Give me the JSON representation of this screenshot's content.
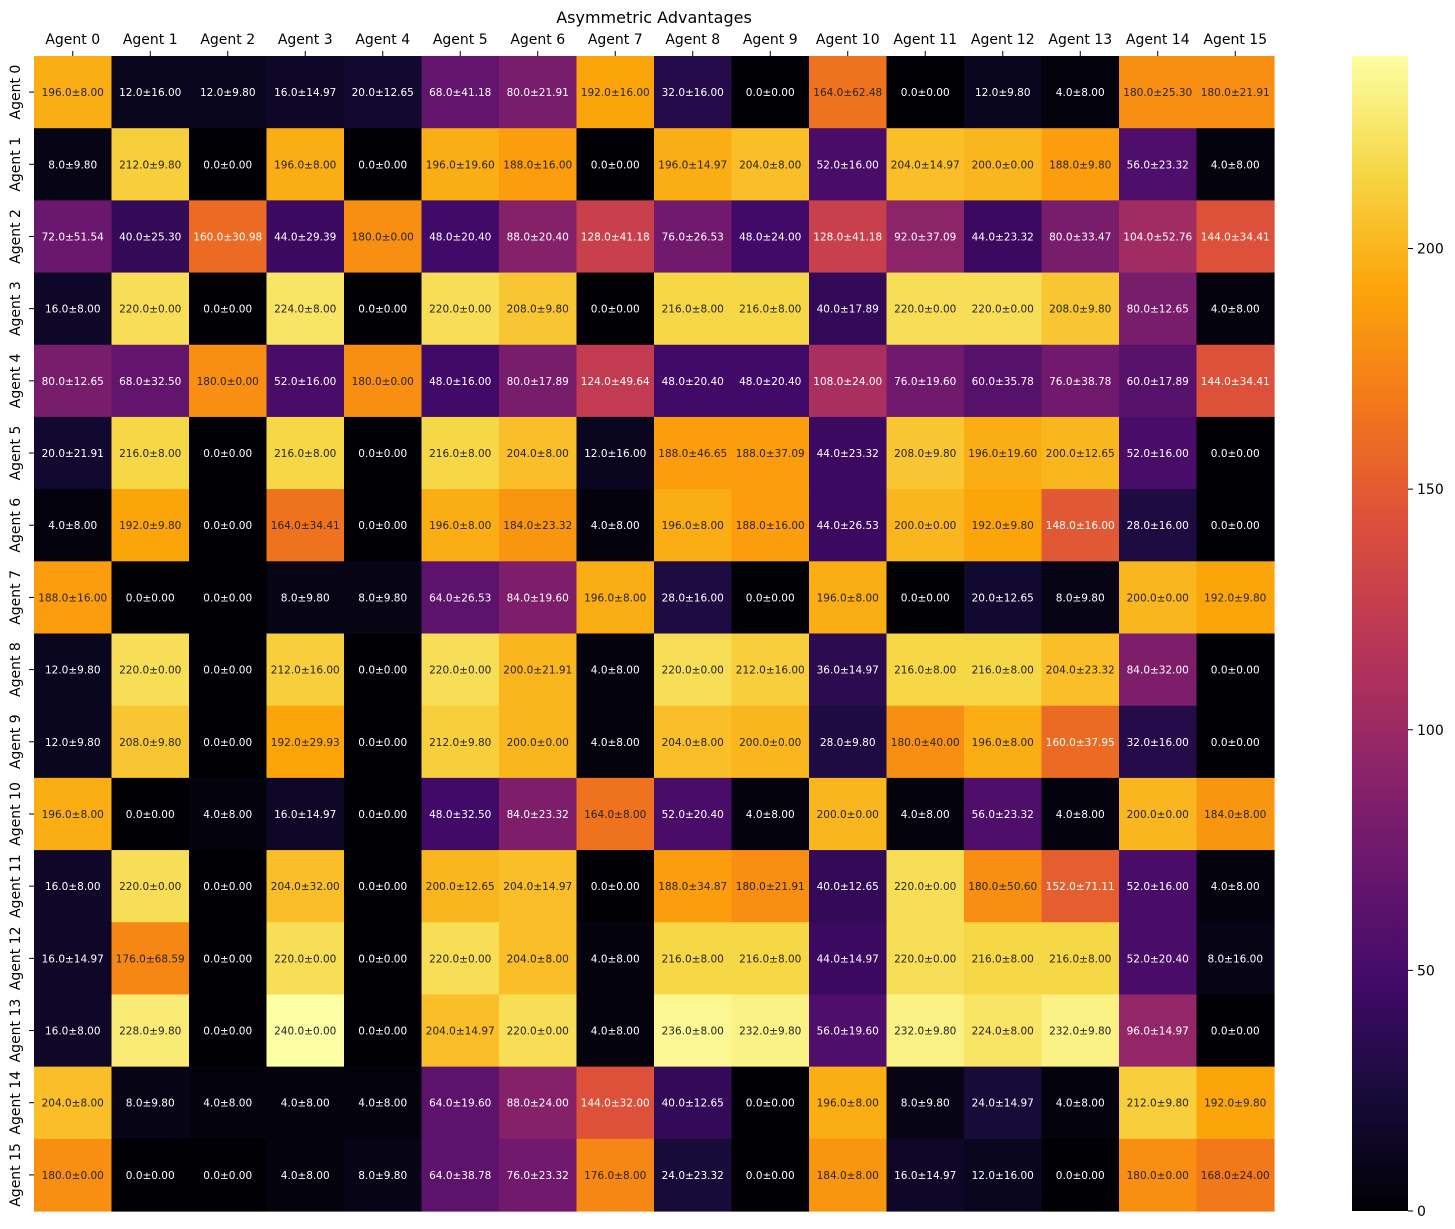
{
  "chart_data": {
    "type": "heatmap",
    "title": "Asymmetric Advantages",
    "x_labels": [
      "Agent 0",
      "Agent 1",
      "Agent 2",
      "Agent 3",
      "Agent 4",
      "Agent 5",
      "Agent 6",
      "Agent 7",
      "Agent 8",
      "Agent 9",
      "Agent 10",
      "Agent 11",
      "Agent 12",
      "Agent 13",
      "Agent 14",
      "Agent 15"
    ],
    "y_labels": [
      "Agent 0",
      "Agent 1",
      "Agent 2",
      "Agent 3",
      "Agent 4",
      "Agent 5",
      "Agent 6",
      "Agent 7",
      "Agent 8",
      "Agent 9",
      "Agent 10",
      "Agent 11",
      "Agent 12",
      "Agent 13",
      "Agent 14",
      "Agent 15"
    ],
    "x_tick_position": "top",
    "colormap": "inferno",
    "vmin": 0,
    "vmax": 240,
    "colorbar_ticks": [
      0,
      50,
      100,
      150,
      200
    ],
    "values": [
      [
        196,
        12,
        12,
        16,
        20,
        68,
        80,
        192,
        32,
        0,
        164,
        0,
        12,
        4,
        180,
        180
      ],
      [
        8,
        212,
        0,
        196,
        0,
        196,
        188,
        0,
        196,
        204,
        52,
        204,
        200,
        188,
        56,
        4
      ],
      [
        72,
        40,
        160,
        44,
        180,
        48,
        88,
        128,
        76,
        48,
        128,
        92,
        44,
        80,
        104,
        144
      ],
      [
        16,
        220,
        0,
        224,
        0,
        220,
        208,
        0,
        216,
        216,
        40,
        220,
        220,
        208,
        80,
        4
      ],
      [
        80,
        68,
        180,
        52,
        180,
        48,
        80,
        124,
        48,
        48,
        108,
        76,
        60,
        76,
        60,
        144
      ],
      [
        20,
        216,
        0,
        216,
        0,
        216,
        204,
        12,
        188,
        188,
        44,
        208,
        196,
        200,
        52,
        0
      ],
      [
        4,
        192,
        0,
        164,
        0,
        196,
        184,
        4,
        196,
        188,
        44,
        200,
        192,
        148,
        28,
        0
      ],
      [
        188,
        0,
        0,
        8,
        8,
        64,
        84,
        196,
        28,
        0,
        196,
        0,
        20,
        8,
        200,
        192
      ],
      [
        12,
        220,
        0,
        212,
        0,
        220,
        200,
        4,
        220,
        212,
        36,
        216,
        216,
        204,
        84,
        0
      ],
      [
        12,
        208,
        0,
        192,
        0,
        212,
        200,
        4,
        204,
        200,
        28,
        180,
        196,
        160,
        32,
        0
      ],
      [
        196,
        0,
        4,
        16,
        0,
        48,
        84,
        164,
        52,
        4,
        200,
        4,
        56,
        4,
        200,
        184
      ],
      [
        16,
        220,
        0,
        204,
        0,
        200,
        204,
        0,
        188,
        180,
        40,
        220,
        180,
        152,
        52,
        4
      ],
      [
        16,
        176,
        0,
        220,
        0,
        220,
        204,
        4,
        216,
        216,
        44,
        220,
        216,
        216,
        52,
        8
      ],
      [
        16,
        228,
        0,
        240,
        0,
        204,
        220,
        4,
        236,
        232,
        56,
        232,
        224,
        232,
        96,
        0
      ],
      [
        204,
        8,
        4,
        4,
        4,
        64,
        88,
        144,
        40,
        0,
        196,
        8,
        24,
        4,
        212,
        192
      ],
      [
        180,
        0,
        0,
        4,
        8,
        64,
        76,
        176,
        24,
        0,
        184,
        16,
        12,
        0,
        180,
        168
      ]
    ],
    "annotations": [
      [
        "196.0±8.00",
        "12.0±16.00",
        "12.0±9.80",
        "16.0±14.97",
        "20.0±12.65",
        "68.0±41.18",
        "80.0±21.91",
        "192.0±16.00",
        "32.0±16.00",
        "0.0±0.00",
        "164.0±62.48",
        "0.0±0.00",
        "12.0±9.80",
        "4.0±8.00",
        "180.0±25.30",
        "180.0±21.91"
      ],
      [
        "8.0±9.80",
        "212.0±9.80",
        "0.0±0.00",
        "196.0±8.00",
        "0.0±0.00",
        "196.0±19.60",
        "188.0±16.00",
        "0.0±0.00",
        "196.0±14.97",
        "204.0±8.00",
        "52.0±16.00",
        "204.0±14.97",
        "200.0±0.00",
        "188.0±9.80",
        "56.0±23.32",
        "4.0±8.00"
      ],
      [
        "72.0±51.54",
        "40.0±25.30",
        "160.0±30.98",
        "44.0±29.39",
        "180.0±0.00",
        "48.0±20.40",
        "88.0±20.40",
        "128.0±41.18",
        "76.0±26.53",
        "48.0±24.00",
        "128.0±41.18",
        "92.0±37.09",
        "44.0±23.32",
        "80.0±33.47",
        "104.0±52.76",
        "144.0±34.41"
      ],
      [
        "16.0±8.00",
        "220.0±0.00",
        "0.0±0.00",
        "224.0±8.00",
        "0.0±0.00",
        "220.0±0.00",
        "208.0±9.80",
        "0.0±0.00",
        "216.0±8.00",
        "216.0±8.00",
        "40.0±17.89",
        "220.0±0.00",
        "220.0±0.00",
        "208.0±9.80",
        "80.0±12.65",
        "4.0±8.00"
      ],
      [
        "80.0±12.65",
        "68.0±32.50",
        "180.0±0.00",
        "52.0±16.00",
        "180.0±0.00",
        "48.0±16.00",
        "80.0±17.89",
        "124.0±49.64",
        "48.0±20.40",
        "48.0±20.40",
        "108.0±24.00",
        "76.0±19.60",
        "60.0±35.78",
        "76.0±38.78",
        "60.0±17.89",
        "144.0±34.41"
      ],
      [
        "20.0±21.91",
        "216.0±8.00",
        "0.0±0.00",
        "216.0±8.00",
        "0.0±0.00",
        "216.0±8.00",
        "204.0±8.00",
        "12.0±16.00",
        "188.0±46.65",
        "188.0±37.09",
        "44.0±23.32",
        "208.0±9.80",
        "196.0±19.60",
        "200.0±12.65",
        "52.0±16.00",
        "0.0±0.00"
      ],
      [
        "4.0±8.00",
        "192.0±9.80",
        "0.0±0.00",
        "164.0±34.41",
        "0.0±0.00",
        "196.0±8.00",
        "184.0±23.32",
        "4.0±8.00",
        "196.0±8.00",
        "188.0±16.00",
        "44.0±26.53",
        "200.0±0.00",
        "192.0±9.80",
        "148.0±16.00",
        "28.0±16.00",
        "0.0±0.00"
      ],
      [
        "188.0±16.00",
        "0.0±0.00",
        "0.0±0.00",
        "8.0±9.80",
        "8.0±9.80",
        "64.0±26.53",
        "84.0±19.60",
        "196.0±8.00",
        "28.0±16.00",
        "0.0±0.00",
        "196.0±8.00",
        "0.0±0.00",
        "20.0±12.65",
        "8.0±9.80",
        "200.0±0.00",
        "192.0±9.80"
      ],
      [
        "12.0±9.80",
        "220.0±0.00",
        "0.0±0.00",
        "212.0±16.00",
        "0.0±0.00",
        "220.0±0.00",
        "200.0±21.91",
        "4.0±8.00",
        "220.0±0.00",
        "212.0±16.00",
        "36.0±14.97",
        "216.0±8.00",
        "216.0±8.00",
        "204.0±23.32",
        "84.0±32.00",
        "0.0±0.00"
      ],
      [
        "12.0±9.80",
        "208.0±9.80",
        "0.0±0.00",
        "192.0±29.93",
        "0.0±0.00",
        "212.0±9.80",
        "200.0±0.00",
        "4.0±8.00",
        "204.0±8.00",
        "200.0±0.00",
        "28.0±9.80",
        "180.0±40.00",
        "196.0±8.00",
        "160.0±37.95",
        "32.0±16.00",
        "0.0±0.00"
      ],
      [
        "196.0±8.00",
        "0.0±0.00",
        "4.0±8.00",
        "16.0±14.97",
        "0.0±0.00",
        "48.0±32.50",
        "84.0±23.32",
        "164.0±8.00",
        "52.0±20.40",
        "4.0±8.00",
        "200.0±0.00",
        "4.0±8.00",
        "56.0±23.32",
        "4.0±8.00",
        "200.0±0.00",
        "184.0±8.00"
      ],
      [
        "16.0±8.00",
        "220.0±0.00",
        "0.0±0.00",
        "204.0±32.00",
        "0.0±0.00",
        "200.0±12.65",
        "204.0±14.97",
        "0.0±0.00",
        "188.0±34.87",
        "180.0±21.91",
        "40.0±12.65",
        "220.0±0.00",
        "180.0±50.60",
        "152.0±71.11",
        "52.0±16.00",
        "4.0±8.00"
      ],
      [
        "16.0±14.97",
        "176.0±68.59",
        "0.0±0.00",
        "220.0±0.00",
        "0.0±0.00",
        "220.0±0.00",
        "204.0±8.00",
        "4.0±8.00",
        "216.0±8.00",
        "216.0±8.00",
        "44.0±14.97",
        "220.0±0.00",
        "216.0±8.00",
        "216.0±8.00",
        "52.0±20.40",
        "8.0±16.00"
      ],
      [
        "16.0±8.00",
        "228.0±9.80",
        "0.0±0.00",
        "240.0±0.00",
        "0.0±0.00",
        "204.0±14.97",
        "220.0±0.00",
        "4.0±8.00",
        "236.0±8.00",
        "232.0±9.80",
        "56.0±19.60",
        "232.0±9.80",
        "224.0±8.00",
        "232.0±9.80",
        "96.0±14.97",
        "0.0±0.00"
      ],
      [
        "204.0±8.00",
        "8.0±9.80",
        "4.0±8.00",
        "4.0±8.00",
        "4.0±8.00",
        "64.0±19.60",
        "88.0±24.00",
        "144.0±32.00",
        "40.0±12.65",
        "0.0±0.00",
        "196.0±8.00",
        "8.0±9.80",
        "24.0±14.97",
        "4.0±8.00",
        "212.0±9.80",
        "192.0±9.80"
      ],
      [
        "180.0±0.00",
        "0.0±0.00",
        "0.0±0.00",
        "4.0±8.00",
        "8.0±9.80",
        "64.0±38.78",
        "76.0±23.32",
        "176.0±8.00",
        "24.0±23.32",
        "0.0±0.00",
        "184.0±8.00",
        "16.0±14.97",
        "12.0±16.00",
        "0.0±0.00",
        "180.0±0.00",
        "168.0±24.00"
      ]
    ]
  }
}
